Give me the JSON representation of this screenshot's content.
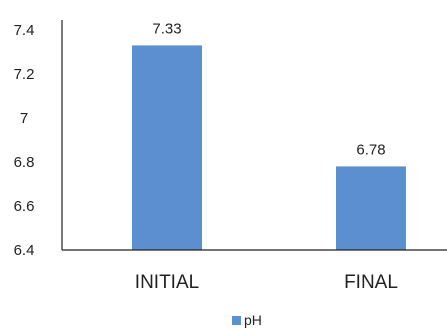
{
  "chart_data": {
    "type": "bar",
    "categories": [
      "INITIAL",
      "FINAL"
    ],
    "series": [
      {
        "name": "pH",
        "values": [
          7.33,
          6.78
        ],
        "color": "#5b8fd0"
      }
    ],
    "data_labels": [
      "7.33",
      "6.78"
    ],
    "ylim": [
      6.4,
      7.4
    ],
    "yticks": [
      6.4,
      6.6,
      6.8,
      7,
      7.2,
      7.4
    ],
    "ytick_labels": [
      "6.4",
      "6.6",
      "6.8",
      "7",
      "7.2",
      "7.4"
    ],
    "title": "",
    "xlabel": "",
    "ylabel": "",
    "grid": false,
    "legend_position": "bottom"
  }
}
